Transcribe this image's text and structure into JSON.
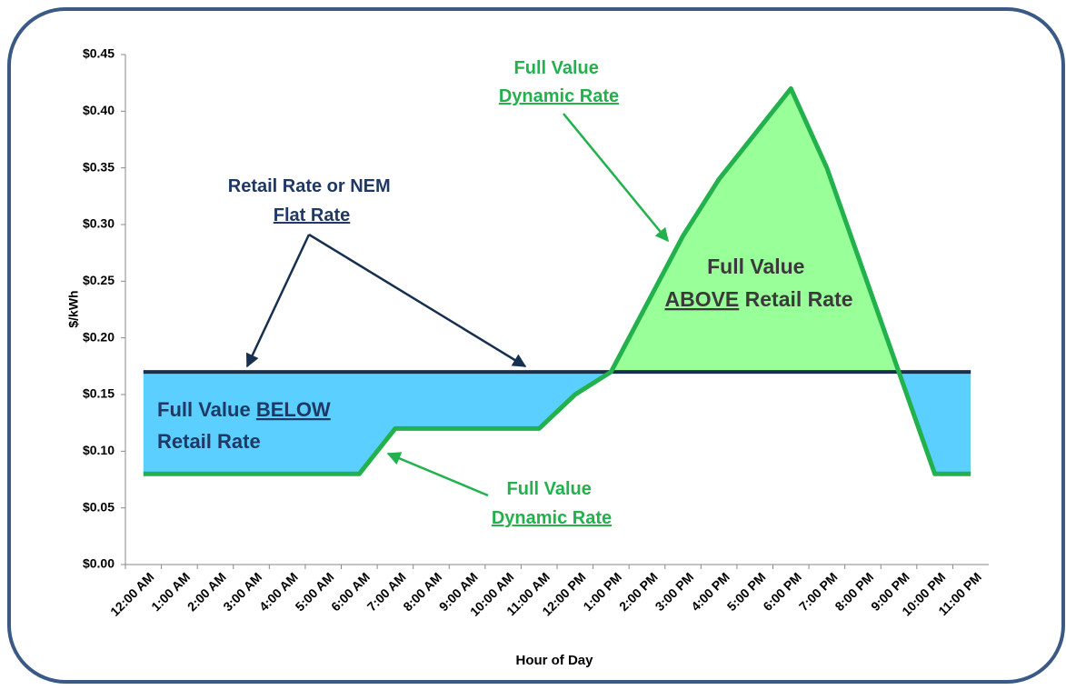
{
  "chart_data": {
    "type": "line",
    "x_label": "Hour of Day",
    "y_label": "$/kWh",
    "categories": [
      "12:00 AM",
      "1:00 AM",
      "2:00 AM",
      "3:00 AM",
      "4:00 AM",
      "5:00 AM",
      "6:00 AM",
      "7:00 AM",
      "8:00 AM",
      "9:00 AM",
      "10:00 AM",
      "11:00 AM",
      "12:00 PM",
      "1:00 PM",
      "2:00 PM",
      "3:00 PM",
      "4:00 PM",
      "5:00 PM",
      "6:00 PM",
      "7:00 PM",
      "8:00 PM",
      "9:00 PM",
      "10:00 PM",
      "11:00 PM"
    ],
    "series": [
      {
        "color": "#22b14c",
        "values": [
          0.08,
          0.08,
          0.08,
          0.08,
          0.08,
          0.08,
          0.08,
          0.12,
          0.12,
          0.12,
          0.12,
          0.12,
          0.15,
          0.17,
          0.23,
          0.29,
          0.34,
          0.38,
          0.42,
          0.35,
          0.26,
          0.17,
          0.08,
          0.08
        ]
      },
      {
        "color": "#17304f",
        "values": [
          0.17,
          0.17,
          0.17,
          0.17,
          0.17,
          0.17,
          0.17,
          0.17,
          0.17,
          0.17,
          0.17,
          0.17,
          0.17,
          0.17,
          0.17,
          0.17,
          0.17,
          0.17,
          0.17,
          0.17,
          0.17,
          0.17,
          0.17,
          0.17
        ]
      }
    ],
    "fill_below": "#5bcfff",
    "fill_above": "#99ff99",
    "ylim": [
      0,
      0.45
    ],
    "yticks": [
      {
        "value": 0,
        "label": "$0.00"
      },
      {
        "value": 0.05,
        "label": "$0.05"
      },
      {
        "value": 0.1,
        "label": "$0.10"
      },
      {
        "value": 0.15,
        "label": "$0.15"
      },
      {
        "value": 0.2,
        "label": "$0.20"
      },
      {
        "value": 0.25,
        "label": "$0.25"
      },
      {
        "value": 0.3,
        "label": "$0.30"
      },
      {
        "value": 0.35,
        "label": "$0.35"
      },
      {
        "value": 0.4,
        "label": "$0.40"
      },
      {
        "value": 0.45,
        "label": "$0.45"
      }
    ],
    "grid": false,
    "annotations": [
      [
        [
          "Full Value"
        ],
        [
          "Dynamic Rate"
        ]
      ],
      [
        [
          "Retail Rate or NEM"
        ],
        [
          "Flat Rate"
        ]
      ],
      [
        [
          "Full Value"
        ],
        [
          "ABOVE",
          " Retail Rate"
        ]
      ],
      [
        [
          "Full Value ",
          "BELOW"
        ],
        [
          "Retail Rate"
        ]
      ],
      [
        [
          "Full Value"
        ],
        [
          "Dynamic Rate"
        ]
      ]
    ]
  }
}
